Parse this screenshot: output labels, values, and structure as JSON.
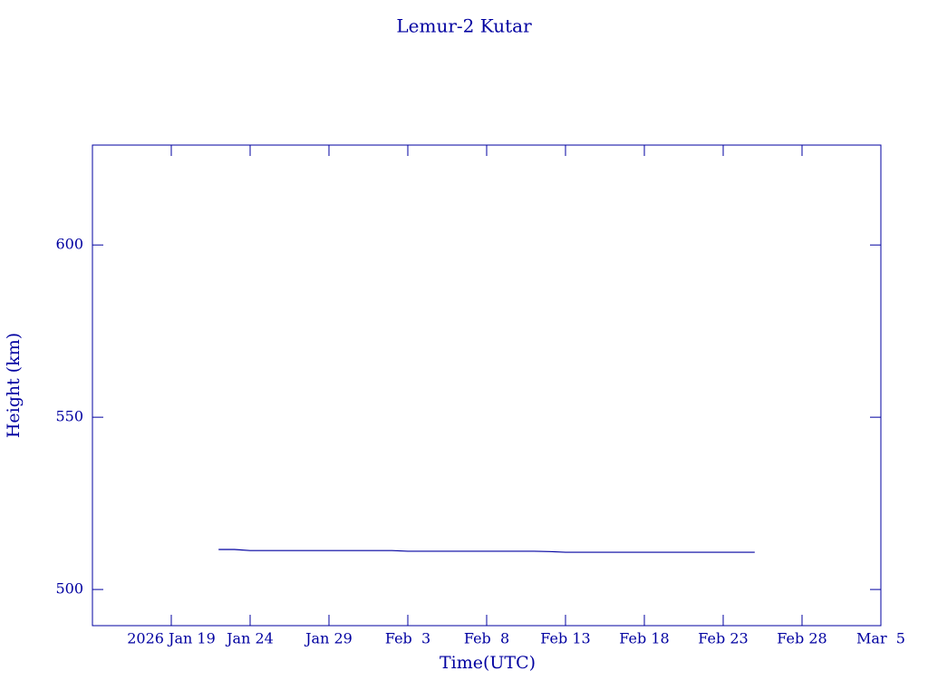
{
  "chart_data": {
    "type": "line",
    "title": "Lemur-2 Kutar",
    "xlabel": "Time(UTC)",
    "ylabel": "Height (km)",
    "x": [
      "2026-01-22",
      "2026-01-23",
      "2026-01-24",
      "2026-01-25",
      "2026-01-26",
      "2026-01-27",
      "2026-01-28",
      "2026-01-29",
      "2026-01-30",
      "2026-01-31",
      "2026-02-01",
      "2026-02-02",
      "2026-02-03",
      "2026-02-04",
      "2026-02-05",
      "2026-02-06",
      "2026-02-07",
      "2026-02-08",
      "2026-02-09",
      "2026-02-10",
      "2026-02-11",
      "2026-02-12",
      "2026-02-13",
      "2026-02-14",
      "2026-02-15",
      "2026-02-16",
      "2026-02-17",
      "2026-02-18",
      "2026-02-19",
      "2026-02-20",
      "2026-02-21",
      "2026-02-22",
      "2026-02-23",
      "2026-02-24",
      "2026-02-25"
    ],
    "series": [
      {
        "name": "Height",
        "color": "#00008b",
        "values": [
          511.6,
          511.6,
          511.3,
          511.3,
          511.3,
          511.3,
          511.3,
          511.3,
          511.3,
          511.3,
          511.3,
          511.3,
          511.1,
          511.1,
          511.1,
          511.1,
          511.1,
          511.1,
          511.1,
          511.1,
          511.1,
          511.0,
          510.8,
          510.8,
          510.8,
          510.8,
          510.8,
          510.8,
          510.8,
          510.8,
          510.8,
          510.8,
          510.8,
          510.8,
          510.8
        ]
      }
    ],
    "xlim": [
      "2026-01-14",
      "2026-03-05"
    ],
    "xticks": [
      {
        "value": "2026-01-19",
        "label": "2026 Jan 19"
      },
      {
        "value": "2026-01-24",
        "label": "Jan 24"
      },
      {
        "value": "2026-01-29",
        "label": "Jan 29"
      },
      {
        "value": "2026-02-03",
        "label": "Feb  3"
      },
      {
        "value": "2026-02-08",
        "label": "Feb  8"
      },
      {
        "value": "2026-02-13",
        "label": "Feb 13"
      },
      {
        "value": "2026-02-18",
        "label": "Feb 18"
      },
      {
        "value": "2026-02-23",
        "label": "Feb 23"
      },
      {
        "value": "2026-02-28",
        "label": "Feb 28"
      },
      {
        "value": "2026-03-05",
        "label": "Mar  5"
      }
    ],
    "ylim": [
      489.5,
      629
    ],
    "yticks": [
      500,
      550,
      600
    ]
  }
}
